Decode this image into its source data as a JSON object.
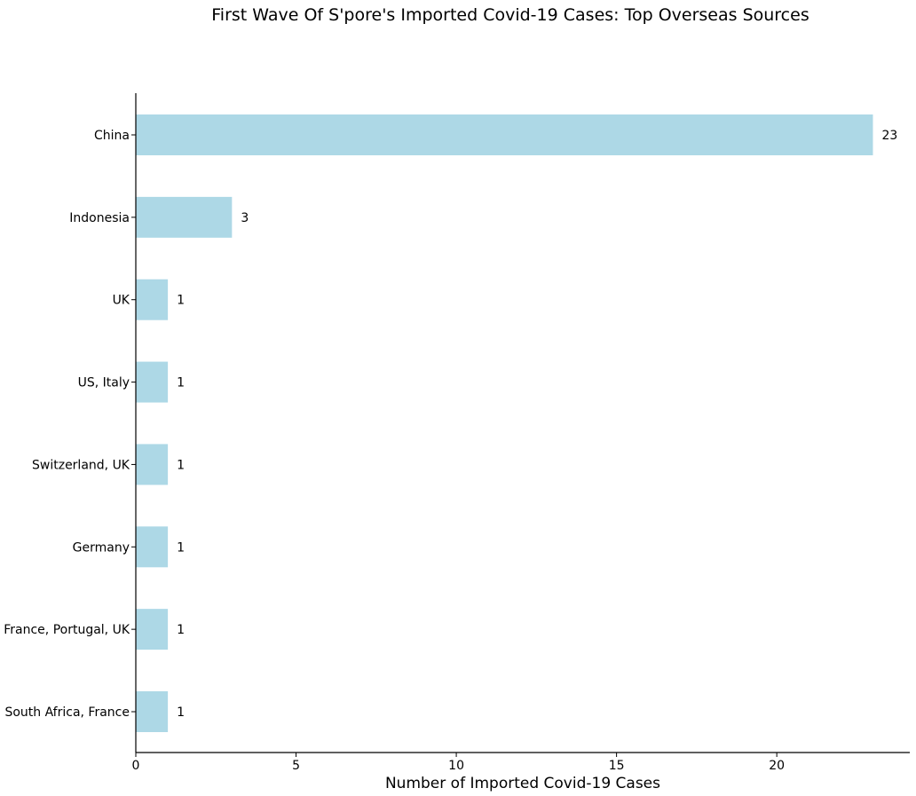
{
  "chart_data": {
    "type": "bar",
    "orientation": "horizontal",
    "title": "First Wave Of S'pore's Imported Covid-19 Cases: Top Overseas Sources",
    "xlabel": "Number of Imported Covid-19 Cases",
    "ylabel": "",
    "categories": [
      "China",
      "Indonesia",
      "UK",
      "US, Italy",
      "Switzerland, UK",
      "Germany",
      "France, Portugal, UK",
      "South Africa, France"
    ],
    "values": [
      23,
      3,
      1,
      1,
      1,
      1,
      1,
      1
    ],
    "value_labels": [
      "23",
      "3",
      "1",
      "1",
      "1",
      "1",
      "1",
      "1"
    ],
    "xlim": [
      0,
      24.15
    ],
    "xticks": [
      0,
      5,
      10,
      15,
      20
    ],
    "xtick_labels": [
      "0",
      "5",
      "10",
      "15",
      "20"
    ],
    "grid": false,
    "bar_color": "#add8e6",
    "axis_color": "#000000",
    "text_color": "#000000"
  }
}
